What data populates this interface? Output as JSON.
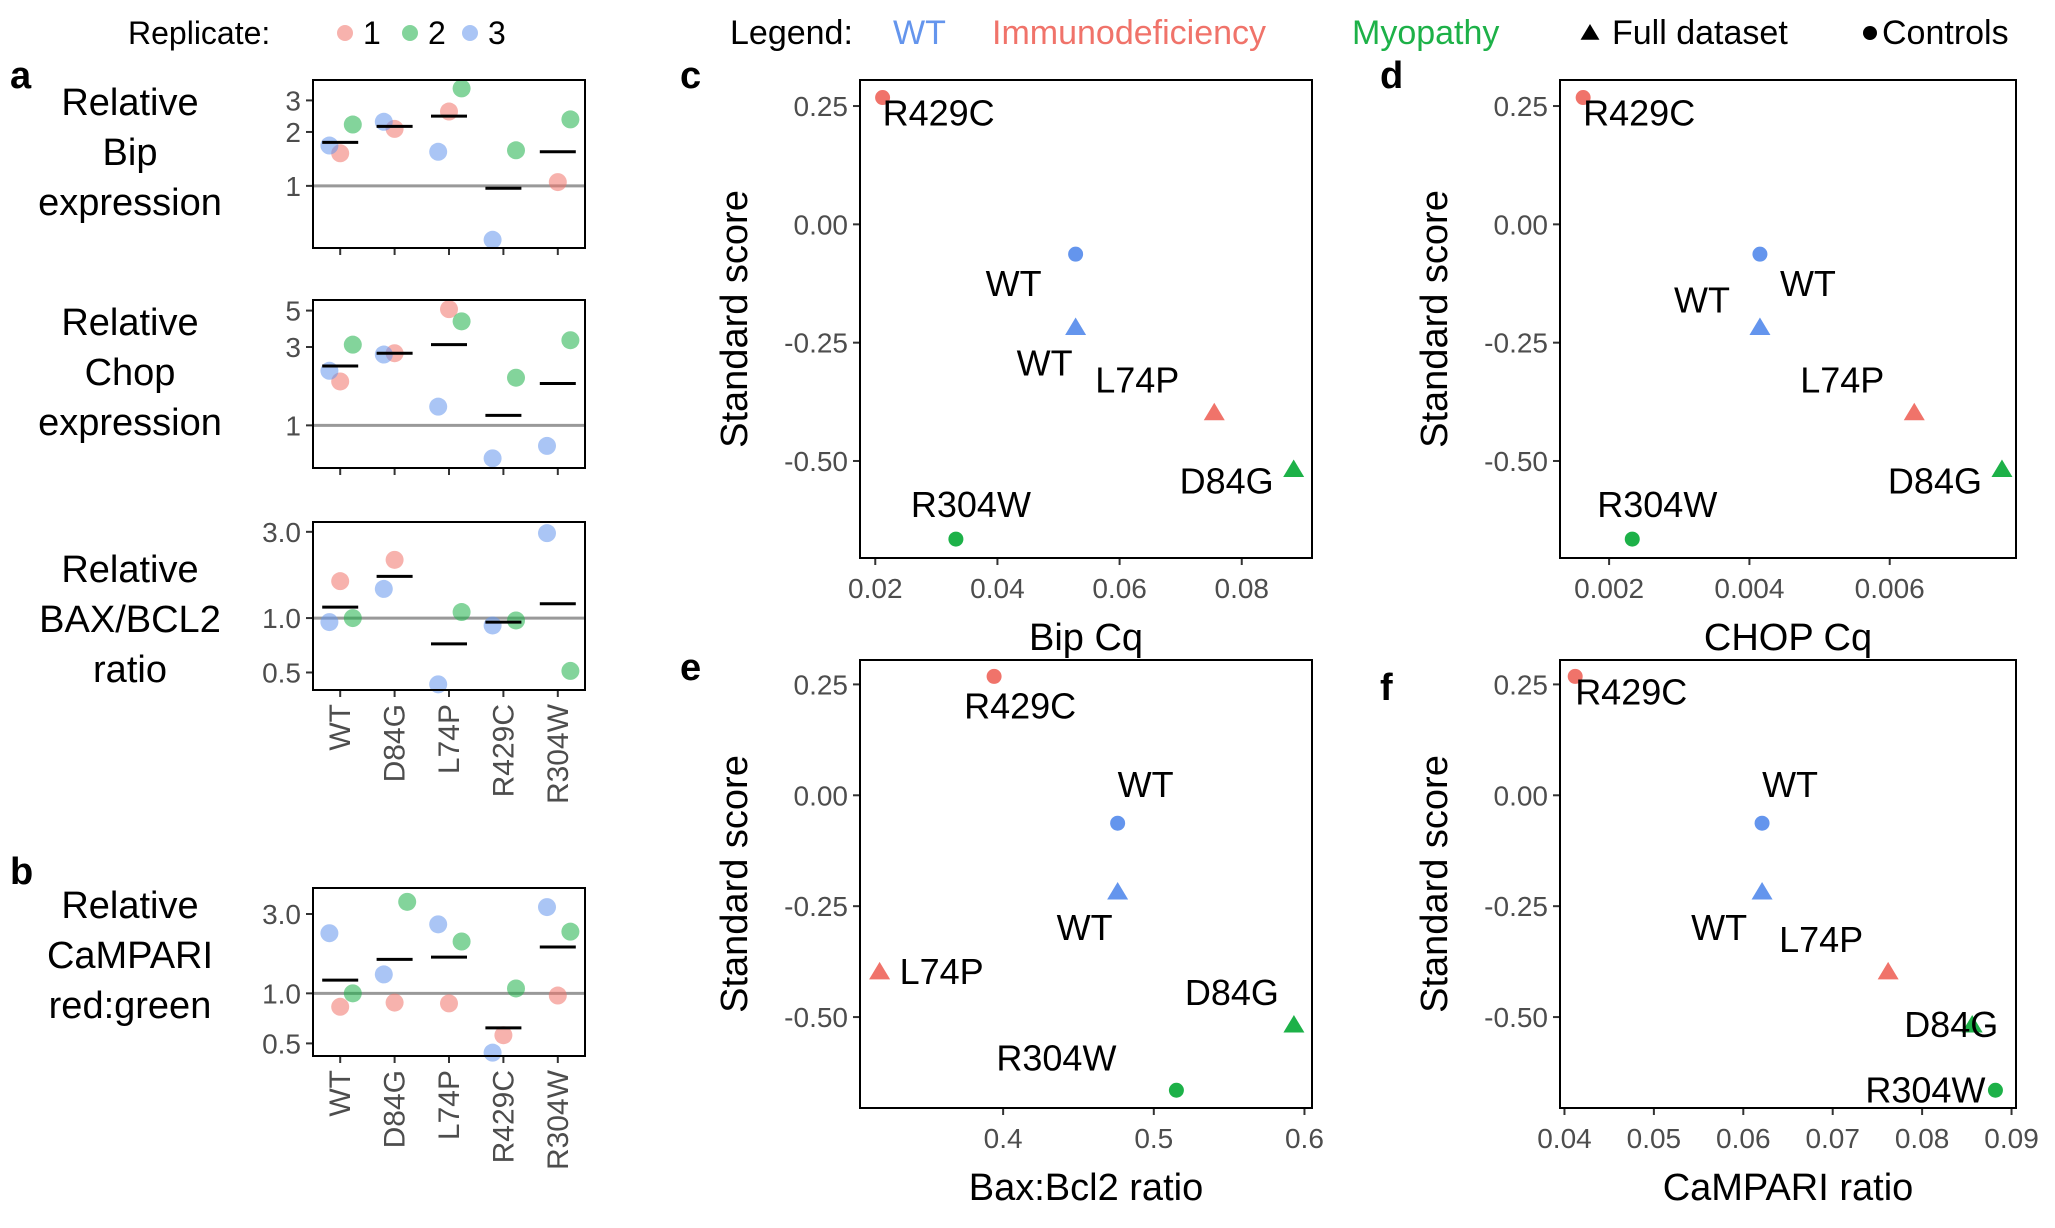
{
  "colors": {
    "wt": "#6495ED",
    "immuno": "#F0736A",
    "myopathy": "#1DB148",
    "frame": "#000000",
    "tick_text": "#4D4D4D",
    "refline": "#999999"
  },
  "header": {
    "replicate_label": "Replicate:",
    "replicate_items": [
      {
        "label": "1",
        "color": "#F0736A"
      },
      {
        "label": "2",
        "color": "#1DB148"
      },
      {
        "label": "3",
        "color": "#6495ED"
      }
    ],
    "legend_label": "Legend:",
    "legend_items": [
      {
        "label": "WT",
        "color": "#6495ED"
      },
      {
        "label": "Immunodeficiency",
        "color": "#F0736A"
      },
      {
        "label": "Myopathy",
        "color": "#1DB148"
      }
    ],
    "shape_items": [
      {
        "label": "Full dataset",
        "shape": "triangle"
      },
      {
        "label": "Controls",
        "shape": "circle"
      }
    ]
  },
  "chart_data": [
    {
      "id": "a1",
      "panel": "a",
      "type": "scatter",
      "log_scale": true,
      "title": [
        "Relative",
        "Bip",
        "expression"
      ],
      "categories": [
        "WT",
        "D84G",
        "L74P",
        "R429C",
        "R304W"
      ],
      "yticks": [
        {
          "v": 1,
          "label": "1"
        },
        {
          "v": 2,
          "label": "2"
        },
        {
          "v": 3,
          "label": "3"
        }
      ],
      "ylim": [
        0.45,
        3.9
      ],
      "refline": 1,
      "points": [
        {
          "cat": "WT",
          "rep": "1",
          "y": 1.52
        },
        {
          "cat": "WT",
          "rep": "2",
          "y": 2.2
        },
        {
          "cat": "WT",
          "rep": "3",
          "y": 1.68
        },
        {
          "cat": "D84G",
          "rep": "1",
          "y": 2.08
        },
        {
          "cat": "D84G",
          "rep": "3",
          "y": 2.28
        },
        {
          "cat": "L74P",
          "rep": "1",
          "y": 2.6
        },
        {
          "cat": "L74P",
          "rep": "2",
          "y": 3.5
        },
        {
          "cat": "L74P",
          "rep": "3",
          "y": 1.55
        },
        {
          "cat": "R429C",
          "rep": "2",
          "y": 1.58
        },
        {
          "cat": "R429C",
          "rep": "3",
          "y": 0.5
        },
        {
          "cat": "R304W",
          "rep": "1",
          "y": 1.05
        },
        {
          "cat": "R304W",
          "rep": "2",
          "y": 2.35
        }
      ],
      "means": [
        {
          "cat": "WT",
          "y": 1.75
        },
        {
          "cat": "D84G",
          "y": 2.15
        },
        {
          "cat": "L74P",
          "y": 2.45
        },
        {
          "cat": "R429C",
          "y": 0.97
        },
        {
          "cat": "R304W",
          "y": 1.55
        }
      ]
    },
    {
      "id": "a2",
      "panel": "",
      "type": "scatter",
      "log_scale": true,
      "title": [
        "Relative",
        "Chop",
        "expression"
      ],
      "categories": [
        "WT",
        "D84G",
        "L74P",
        "R429C",
        "R304W"
      ],
      "yticks": [
        {
          "v": 1,
          "label": "1"
        },
        {
          "v": 3,
          "label": "3"
        },
        {
          "v": 5,
          "label": "5"
        }
      ],
      "ylim": [
        0.55,
        5.8
      ],
      "refline": 1,
      "points": [
        {
          "cat": "WT",
          "rep": "1",
          "y": 1.85
        },
        {
          "cat": "WT",
          "rep": "2",
          "y": 3.1
        },
        {
          "cat": "WT",
          "rep": "3",
          "y": 2.15
        },
        {
          "cat": "D84G",
          "rep": "1",
          "y": 2.75
        },
        {
          "cat": "D84G",
          "rep": "3",
          "y": 2.7
        },
        {
          "cat": "L74P",
          "rep": "1",
          "y": 5.1
        },
        {
          "cat": "L74P",
          "rep": "2",
          "y": 4.3
        },
        {
          "cat": "L74P",
          "rep": "3",
          "y": 1.3
        },
        {
          "cat": "R429C",
          "rep": "2",
          "y": 1.95
        },
        {
          "cat": "R429C",
          "rep": "3",
          "y": 0.63
        },
        {
          "cat": "R304W",
          "rep": "2",
          "y": 3.3
        },
        {
          "cat": "R304W",
          "rep": "3",
          "y": 0.75
        }
      ],
      "means": [
        {
          "cat": "WT",
          "y": 2.3
        },
        {
          "cat": "D84G",
          "y": 2.75
        },
        {
          "cat": "L74P",
          "y": 3.1
        },
        {
          "cat": "R429C",
          "y": 1.15
        },
        {
          "cat": "R304W",
          "y": 1.8
        }
      ]
    },
    {
      "id": "a3",
      "panel": "",
      "type": "scatter",
      "log_scale": true,
      "title": [
        "Relative",
        "BAX/BCL2",
        "ratio"
      ],
      "categories": [
        "WT",
        "D84G",
        "L74P",
        "R429C",
        "R304W"
      ],
      "yticks": [
        {
          "v": 0.5,
          "label": "0.5"
        },
        {
          "v": 1,
          "label": "1.0"
        },
        {
          "v": 3,
          "label": "3.0"
        }
      ],
      "ylim": [
        0.4,
        3.4
      ],
      "refline": 1,
      "points": [
        {
          "cat": "WT",
          "rep": "1",
          "y": 1.6
        },
        {
          "cat": "WT",
          "rep": "2",
          "y": 1.0
        },
        {
          "cat": "WT",
          "rep": "3",
          "y": 0.95
        },
        {
          "cat": "D84G",
          "rep": "1",
          "y": 2.1
        },
        {
          "cat": "D84G",
          "rep": "3",
          "y": 1.45
        },
        {
          "cat": "L74P",
          "rep": "2",
          "y": 1.08
        },
        {
          "cat": "L74P",
          "rep": "3",
          "y": 0.43
        },
        {
          "cat": "R429C",
          "rep": "2",
          "y": 0.97
        },
        {
          "cat": "R429C",
          "rep": "3",
          "y": 0.91
        },
        {
          "cat": "R304W",
          "rep": "2",
          "y": 0.51
        },
        {
          "cat": "R304W",
          "rep": "3",
          "y": 2.95
        }
      ],
      "means": [
        {
          "cat": "WT",
          "y": 1.15
        },
        {
          "cat": "D84G",
          "y": 1.7
        },
        {
          "cat": "L74P",
          "y": 0.72
        },
        {
          "cat": "R429C",
          "y": 0.95
        },
        {
          "cat": "R304W",
          "y": 1.2
        }
      ]
    },
    {
      "id": "b1",
      "panel": "b",
      "type": "scatter",
      "log_scale": true,
      "title": [
        "Relative",
        "CaMPARI",
        "red:green"
      ],
      "categories": [
        "WT",
        "D84G",
        "L74P",
        "R429C",
        "R304W"
      ],
      "yticks": [
        {
          "v": 0.5,
          "label": "0.5"
        },
        {
          "v": 1,
          "label": "1.0"
        },
        {
          "v": 3,
          "label": "3.0"
        }
      ],
      "ylim": [
        0.42,
        4.3
      ],
      "refline": 1,
      "points": [
        {
          "cat": "WT",
          "rep": "1",
          "y": 0.83
        },
        {
          "cat": "WT",
          "rep": "2",
          "y": 1.0
        },
        {
          "cat": "WT",
          "rep": "3",
          "y": 2.3
        },
        {
          "cat": "D84G",
          "rep": "1",
          "y": 0.88
        },
        {
          "cat": "D84G",
          "rep": "2",
          "y": 3.55
        },
        {
          "cat": "D84G",
          "rep": "3",
          "y": 1.3
        },
        {
          "cat": "L74P",
          "rep": "1",
          "y": 0.87
        },
        {
          "cat": "L74P",
          "rep": "2",
          "y": 2.05
        },
        {
          "cat": "L74P",
          "rep": "3",
          "y": 2.6
        },
        {
          "cat": "R429C",
          "rep": "1",
          "y": 0.56
        },
        {
          "cat": "R429C",
          "rep": "2",
          "y": 1.07
        },
        {
          "cat": "R429C",
          "rep": "3",
          "y": 0.44
        },
        {
          "cat": "R304W",
          "rep": "1",
          "y": 0.97
        },
        {
          "cat": "R304W",
          "rep": "2",
          "y": 2.35
        },
        {
          "cat": "R304W",
          "rep": "3",
          "y": 3.3
        }
      ],
      "means": [
        {
          "cat": "WT",
          "y": 1.2
        },
        {
          "cat": "D84G",
          "y": 1.6
        },
        {
          "cat": "L74P",
          "y": 1.65
        },
        {
          "cat": "R429C",
          "y": 0.62
        },
        {
          "cat": "R304W",
          "y": 1.9
        }
      ]
    },
    {
      "id": "c",
      "panel": "c",
      "type": "scatter",
      "xlabel": "Bip Cq",
      "ylabel": "Standard score",
      "xlim": [
        0.0175,
        0.0915
      ],
      "ylim": [
        -0.705,
        0.305
      ],
      "xticks": [
        {
          "v": 0.02,
          "label": "0.02"
        },
        {
          "v": 0.04,
          "label": "0.04"
        },
        {
          "v": 0.06,
          "label": "0.06"
        },
        {
          "v": 0.08,
          "label": "0.08"
        }
      ],
      "yticks": [
        {
          "v": 0.25,
          "label": "0.25"
        },
        {
          "v": 0.0,
          "label": "0.00"
        },
        {
          "v": -0.25,
          "label": "-0.25"
        },
        {
          "v": -0.5,
          "label": "-0.50"
        }
      ],
      "points": [
        {
          "label": "R429C",
          "group": "Immunodeficiency",
          "shape": "circle",
          "x": 0.0212,
          "y": 0.268
        },
        {
          "label": "WT",
          "group": "WT",
          "shape": "circle",
          "x": 0.0528,
          "y": -0.063
        },
        {
          "label": "WT",
          "group": "WT",
          "shape": "triangle",
          "x": 0.0528,
          "y": -0.218
        },
        {
          "label": "L74P",
          "group": "Immunodeficiency",
          "shape": "triangle",
          "x": 0.0755,
          "y": -0.398
        },
        {
          "label": "D84G",
          "group": "Myopathy",
          "shape": "triangle",
          "x": 0.0885,
          "y": -0.518
        },
        {
          "label": "R304W",
          "group": "Myopathy",
          "shape": "circle",
          "x": 0.0332,
          "y": -0.665
        }
      ]
    },
    {
      "id": "d",
      "panel": "d",
      "type": "scatter",
      "xlabel": "CHOP Cq",
      "ylabel": "Standard score",
      "xlim": [
        0.0013,
        0.0078
      ],
      "ylim": [
        -0.705,
        0.305
      ],
      "xticks": [
        {
          "v": 0.002,
          "label": "0.002"
        },
        {
          "v": 0.004,
          "label": "0.004"
        },
        {
          "v": 0.006,
          "label": "0.006"
        }
      ],
      "yticks": [
        {
          "v": 0.25,
          "label": "0.25"
        },
        {
          "v": 0.0,
          "label": "0.00"
        },
        {
          "v": -0.25,
          "label": "-0.25"
        },
        {
          "v": -0.5,
          "label": "-0.50"
        }
      ],
      "points": [
        {
          "label": "R429C",
          "group": "Immunodeficiency",
          "shape": "circle",
          "x": 0.00163,
          "y": 0.268
        },
        {
          "label": "WT",
          "group": "WT",
          "shape": "circle",
          "x": 0.00415,
          "y": -0.063
        },
        {
          "label": "WT",
          "group": "WT",
          "shape": "triangle",
          "x": 0.00415,
          "y": -0.218
        },
        {
          "label": "L74P",
          "group": "Immunodeficiency",
          "shape": "triangle",
          "x": 0.00635,
          "y": -0.398
        },
        {
          "label": "D84G",
          "group": "Myopathy",
          "shape": "triangle",
          "x": 0.0076,
          "y": -0.518
        },
        {
          "label": "R304W",
          "group": "Myopathy",
          "shape": "circle",
          "x": 0.00233,
          "y": -0.665
        }
      ]
    },
    {
      "id": "e",
      "panel": "e",
      "type": "scatter",
      "xlabel": "Bax:Bcl2 ratio",
      "ylabel": "Standard score",
      "xlim": [
        0.305,
        0.605
      ],
      "ylim": [
        -0.705,
        0.305
      ],
      "xticks": [
        {
          "v": 0.4,
          "label": "0.4"
        },
        {
          "v": 0.5,
          "label": "0.5"
        },
        {
          "v": 0.6,
          "label": "0.6"
        }
      ],
      "yticks": [
        {
          "v": 0.25,
          "label": "0.25"
        },
        {
          "v": 0.0,
          "label": "0.00"
        },
        {
          "v": -0.25,
          "label": "-0.25"
        },
        {
          "v": -0.5,
          "label": "-0.50"
        }
      ],
      "points": [
        {
          "label": "R429C",
          "group": "Immunodeficiency",
          "shape": "circle",
          "x": 0.394,
          "y": 0.268
        },
        {
          "label": "WT",
          "group": "WT",
          "shape": "circle",
          "x": 0.476,
          "y": -0.063
        },
        {
          "label": "WT",
          "group": "WT",
          "shape": "triangle",
          "x": 0.476,
          "y": -0.218
        },
        {
          "label": "L74P",
          "group": "Immunodeficiency",
          "shape": "triangle",
          "x": 0.318,
          "y": -0.398
        },
        {
          "label": "D84G",
          "group": "Myopathy",
          "shape": "triangle",
          "x": 0.593,
          "y": -0.518
        },
        {
          "label": "R304W",
          "group": "Myopathy",
          "shape": "circle",
          "x": 0.515,
          "y": -0.665
        }
      ]
    },
    {
      "id": "f",
      "panel": "f",
      "type": "scatter",
      "xlabel": "CaMPARI ratio",
      "ylabel": "Standard score",
      "xlim": [
        0.0395,
        0.0905
      ],
      "ylim": [
        -0.705,
        0.305
      ],
      "xticks": [
        {
          "v": 0.04,
          "label": "0.04"
        },
        {
          "v": 0.05,
          "label": "0.05"
        },
        {
          "v": 0.06,
          "label": "0.06"
        },
        {
          "v": 0.07,
          "label": "0.07"
        },
        {
          "v": 0.08,
          "label": "0.08"
        },
        {
          "v": 0.09,
          "label": "0.09"
        }
      ],
      "yticks": [
        {
          "v": 0.25,
          "label": "0.25"
        },
        {
          "v": 0.0,
          "label": "0.00"
        },
        {
          "v": -0.25,
          "label": "-0.25"
        },
        {
          "v": -0.5,
          "label": "-0.50"
        }
      ],
      "points": [
        {
          "label": "R429C",
          "group": "Immunodeficiency",
          "shape": "circle",
          "x": 0.0412,
          "y": 0.268
        },
        {
          "label": "WT",
          "group": "WT",
          "shape": "circle",
          "x": 0.0621,
          "y": -0.063
        },
        {
          "label": "WT",
          "group": "WT",
          "shape": "triangle",
          "x": 0.0621,
          "y": -0.218
        },
        {
          "label": "L74P",
          "group": "Immunodeficiency",
          "shape": "triangle",
          "x": 0.0762,
          "y": -0.398
        },
        {
          "label": "D84G",
          "group": "Myopathy",
          "shape": "triangle",
          "x": 0.0856,
          "y": -0.518
        },
        {
          "label": "R304W",
          "group": "Myopathy",
          "shape": "circle",
          "x": 0.0882,
          "y": -0.665
        }
      ]
    }
  ]
}
